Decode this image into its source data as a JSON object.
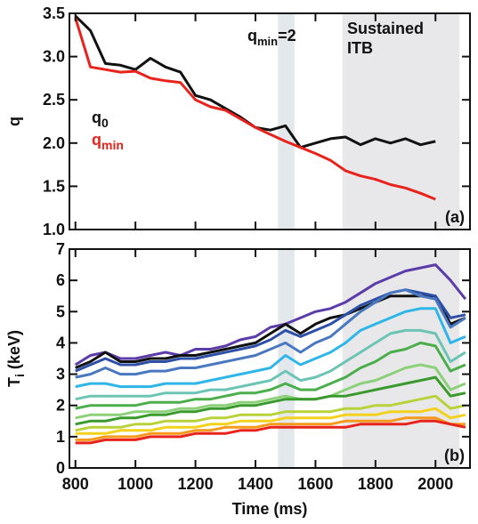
{
  "chart_data": [
    {
      "type": "line",
      "panel_label": "(a)",
      "ylabel": "q",
      "xlim": [
        780,
        2115
      ],
      "ylim": [
        1.0,
        3.5
      ],
      "yticks": [
        {
          "value": 1.0,
          "label": "1.0"
        },
        {
          "value": 1.5,
          "label": "1.5"
        },
        {
          "value": 2.0,
          "label": "2.0"
        },
        {
          "value": 2.5,
          "label": "2.5"
        },
        {
          "value": 3.0,
          "label": "3.0"
        },
        {
          "value": 3.5,
          "label": "3.5"
        }
      ],
      "bands": [
        {
          "start": 1475,
          "end": 1530,
          "color": "#e3e8ec"
        },
        {
          "start": 1690,
          "end": 2080,
          "color": "#e8e8eb"
        }
      ],
      "annotations": [
        {
          "text": "q",
          "sub": "min",
          "rest": "=2"
        },
        {
          "lines": [
            "Sustained",
            "ITB"
          ]
        }
      ],
      "x": [
        800,
        850,
        900,
        950,
        1000,
        1050,
        1100,
        1150,
        1200,
        1250,
        1300,
        1350,
        1400,
        1450,
        1500,
        1550,
        1600,
        1650,
        1700,
        1750,
        1800,
        1850,
        1900,
        1950,
        2000
      ],
      "series": [
        {
          "name": "q",
          "sub": "0",
          "color": "#111111",
          "values": [
            3.47,
            3.3,
            2.92,
            2.9,
            2.85,
            2.98,
            2.88,
            2.82,
            2.55,
            2.5,
            2.4,
            2.3,
            2.18,
            2.15,
            2.2,
            1.95,
            2.0,
            2.05,
            2.07,
            1.98,
            2.05,
            2.0,
            2.05,
            1.98,
            2.02
          ]
        },
        {
          "name": "q",
          "sub": "min",
          "color": "#e8231c",
          "values": [
            3.45,
            2.88,
            2.85,
            2.82,
            2.83,
            2.75,
            2.72,
            2.7,
            2.5,
            2.42,
            2.38,
            2.28,
            2.18,
            2.1,
            2.02,
            1.95,
            1.88,
            1.8,
            1.68,
            1.62,
            1.58,
            1.52,
            1.48,
            1.42,
            1.35
          ]
        }
      ]
    },
    {
      "type": "line",
      "panel_label": "(b)",
      "ylabel": "T",
      "ylabel_sub": "i",
      "ylabel_rest": " (keV)",
      "xlabel": "Time (ms)",
      "xlim": [
        780,
        2115
      ],
      "ylim": [
        0,
        7
      ],
      "xticks": [
        800,
        1000,
        1200,
        1400,
        1600,
        1800,
        2000
      ],
      "yticks": [
        0,
        1,
        2,
        3,
        4,
        5,
        6,
        7
      ],
      "bands": [
        {
          "start": 1475,
          "end": 1530,
          "color": "#e3e8ec"
        },
        {
          "start": 1690,
          "end": 2080,
          "color": "#e8e8eb"
        }
      ],
      "x": [
        800,
        850,
        900,
        950,
        1000,
        1050,
        1100,
        1150,
        1200,
        1250,
        1300,
        1350,
        1400,
        1450,
        1500,
        1550,
        1600,
        1650,
        1700,
        1750,
        1800,
        1850,
        1900,
        1950,
        2000,
        2050,
        2100
      ],
      "series": [
        {
          "color": "#5b3ca8",
          "values": [
            3.3,
            3.6,
            3.7,
            3.5,
            3.5,
            3.6,
            3.7,
            3.6,
            3.8,
            3.8,
            3.9,
            4.1,
            4.2,
            4.5,
            4.6,
            4.8,
            5.0,
            5.1,
            5.3,
            5.6,
            5.9,
            6.1,
            6.3,
            6.4,
            6.5,
            6.0,
            5.4
          ]
        },
        {
          "color": "#111111",
          "values": [
            3.2,
            3.4,
            3.7,
            3.4,
            3.4,
            3.5,
            3.5,
            3.6,
            3.6,
            3.7,
            3.8,
            3.9,
            4.0,
            4.3,
            4.6,
            4.3,
            4.6,
            4.8,
            4.9,
            5.1,
            5.3,
            5.5,
            5.5,
            5.5,
            5.5,
            4.6,
            4.8
          ]
        },
        {
          "color": "#2d4fa8",
          "values": [
            3.1,
            3.3,
            3.5,
            3.3,
            3.3,
            3.4,
            3.4,
            3.5,
            3.5,
            3.6,
            3.7,
            3.8,
            3.9,
            4.1,
            4.4,
            4.2,
            4.4,
            4.6,
            4.9,
            5.2,
            5.4,
            5.6,
            5.7,
            5.6,
            5.5,
            4.8,
            4.9
          ]
        },
        {
          "color": "#4a78c0",
          "values": [
            2.9,
            3.0,
            3.2,
            3.0,
            3.0,
            3.1,
            3.1,
            3.2,
            3.2,
            3.3,
            3.4,
            3.5,
            3.6,
            3.8,
            4.0,
            3.7,
            4.0,
            4.2,
            4.6,
            5.0,
            5.3,
            5.6,
            5.7,
            5.5,
            5.4,
            4.5,
            4.8
          ]
        },
        {
          "color": "#2fb6e8",
          "values": [
            2.6,
            2.7,
            2.7,
            2.6,
            2.6,
            2.6,
            2.7,
            2.7,
            2.7,
            2.8,
            2.9,
            3.0,
            3.1,
            3.2,
            3.6,
            3.3,
            3.5,
            3.7,
            4.0,
            4.4,
            4.6,
            4.8,
            5.0,
            5.1,
            5.1,
            4.0,
            4.2
          ]
        },
        {
          "color": "#6cc4b4",
          "values": [
            2.2,
            2.3,
            2.3,
            2.3,
            2.3,
            2.3,
            2.4,
            2.4,
            2.4,
            2.5,
            2.5,
            2.6,
            2.7,
            2.8,
            3.1,
            2.8,
            2.9,
            3.1,
            3.4,
            3.7,
            4.0,
            4.3,
            4.4,
            4.4,
            4.3,
            3.4,
            3.7
          ]
        },
        {
          "color": "#4aae4a",
          "values": [
            1.9,
            2.0,
            2.0,
            2.0,
            2.0,
            2.1,
            2.1,
            2.1,
            2.2,
            2.2,
            2.3,
            2.4,
            2.4,
            2.5,
            2.7,
            2.5,
            2.5,
            2.7,
            2.9,
            3.2,
            3.4,
            3.7,
            3.8,
            4.0,
            3.9,
            3.1,
            3.3
          ]
        },
        {
          "color": "#8cd07a",
          "values": [
            1.6,
            1.7,
            1.7,
            1.7,
            1.8,
            1.8,
            1.8,
            1.9,
            1.9,
            2.0,
            2.0,
            2.1,
            2.1,
            2.2,
            2.3,
            2.2,
            2.2,
            2.3,
            2.5,
            2.7,
            2.8,
            3.0,
            3.2,
            3.3,
            3.2,
            2.5,
            2.7
          ]
        },
        {
          "color": "#3a9a2c",
          "values": [
            1.4,
            1.5,
            1.5,
            1.6,
            1.6,
            1.7,
            1.7,
            1.8,
            1.8,
            1.9,
            1.9,
            2.0,
            2.0,
            2.1,
            2.2,
            2.2,
            2.2,
            2.3,
            2.3,
            2.4,
            2.5,
            2.6,
            2.7,
            2.8,
            2.9,
            2.3,
            2.4
          ]
        },
        {
          "color": "#b8d23a",
          "values": [
            1.2,
            1.3,
            1.3,
            1.3,
            1.4,
            1.4,
            1.5,
            1.5,
            1.5,
            1.6,
            1.6,
            1.7,
            1.7,
            1.7,
            1.8,
            1.8,
            1.8,
            1.8,
            1.9,
            1.9,
            2.0,
            2.0,
            2.1,
            2.2,
            2.3,
            1.9,
            2.0
          ]
        },
        {
          "color": "#f2d21c",
          "values": [
            1.1,
            1.1,
            1.1,
            1.2,
            1.2,
            1.2,
            1.3,
            1.3,
            1.3,
            1.4,
            1.4,
            1.5,
            1.5,
            1.5,
            1.6,
            1.6,
            1.6,
            1.6,
            1.7,
            1.7,
            1.7,
            1.8,
            1.8,
            1.8,
            1.9,
            1.6,
            1.7
          ]
        },
        {
          "color": "#f59a1c",
          "values": [
            0.9,
            0.9,
            1.0,
            1.0,
            1.0,
            1.1,
            1.1,
            1.1,
            1.2,
            1.2,
            1.3,
            1.3,
            1.3,
            1.4,
            1.4,
            1.4,
            1.4,
            1.4,
            1.5,
            1.5,
            1.5,
            1.5,
            1.6,
            1.6,
            1.6,
            1.4,
            1.4
          ]
        },
        {
          "color": "#e8231c",
          "values": [
            0.8,
            0.8,
            0.9,
            0.9,
            0.9,
            1.0,
            1.0,
            1.0,
            1.1,
            1.1,
            1.1,
            1.2,
            1.2,
            1.3,
            1.3,
            1.3,
            1.3,
            1.3,
            1.3,
            1.4,
            1.4,
            1.4,
            1.4,
            1.5,
            1.5,
            1.4,
            1.3
          ]
        }
      ]
    }
  ]
}
